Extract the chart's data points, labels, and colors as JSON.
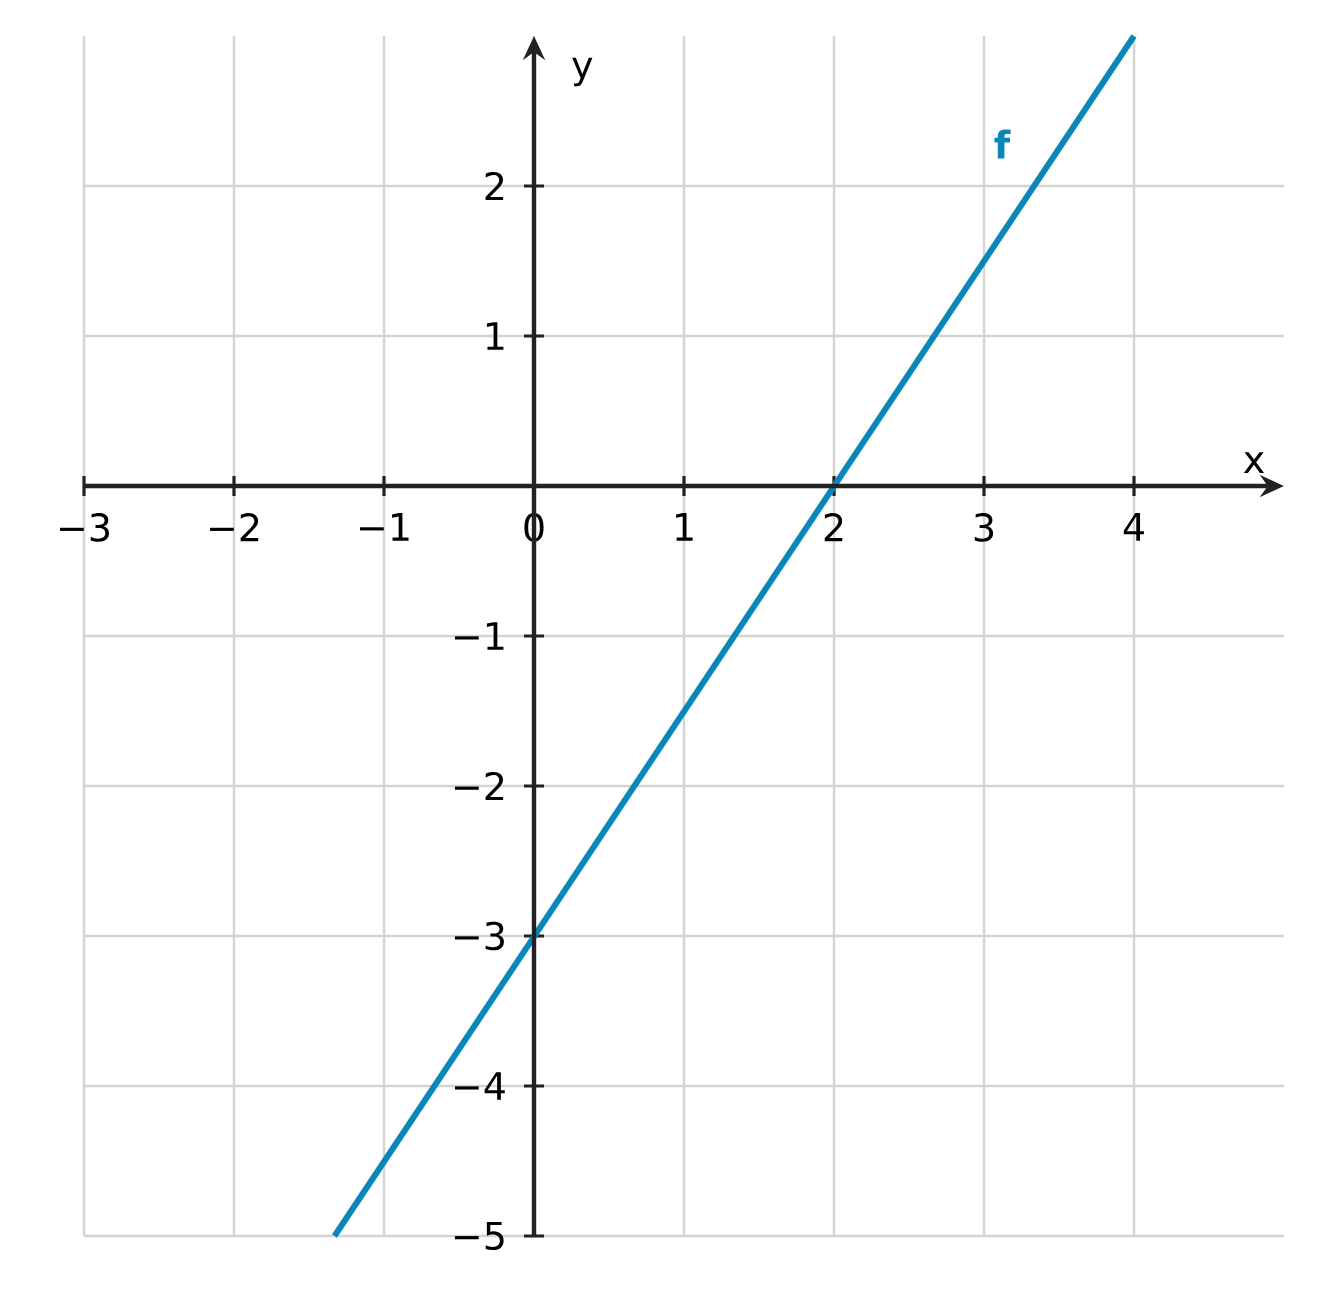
{
  "chart_data": {
    "type": "line",
    "xlabel": "x",
    "ylabel": "y",
    "series": [
      {
        "name": "f",
        "color": "#0a87b8",
        "x": [
          -1.33,
          4
        ],
        "values": [
          -5,
          3
        ]
      }
    ],
    "xlim": [
      -3,
      5
    ],
    "ylim": [
      -5,
      3
    ],
    "xticks": [
      {
        "value": -3,
        "label": "−3"
      },
      {
        "value": -2,
        "label": "−2"
      },
      {
        "value": -1,
        "label": "−1"
      },
      0,
      1,
      2,
      3,
      4
    ],
    "yticks": [
      {
        "value": -5,
        "label": "−5"
      },
      {
        "value": -4,
        "label": "−4"
      },
      {
        "value": -3,
        "label": "−3"
      },
      {
        "value": -2,
        "label": "−2"
      },
      {
        "value": -1,
        "label": "−1"
      },
      1,
      2
    ],
    "grid": true,
    "marker": "none"
  }
}
